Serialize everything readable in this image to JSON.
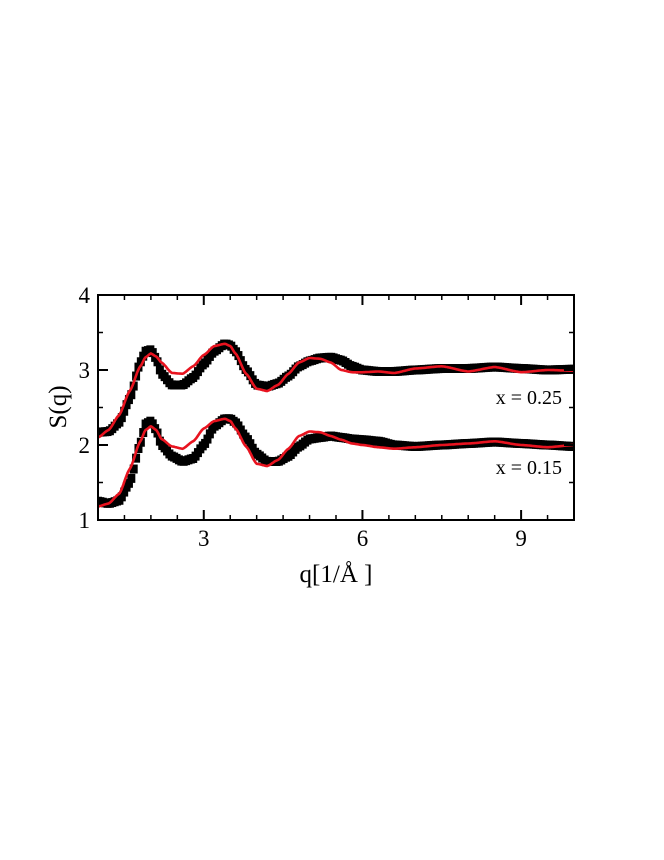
{
  "chart_data": {
    "type": "scatter",
    "xlabel": "q[1/Å ]",
    "ylabel": "S(q)",
    "xlim": [
      1,
      10
    ],
    "ylim": [
      1,
      4
    ],
    "x_ticks": [
      3,
      6,
      9
    ],
    "y_ticks": [
      1,
      2,
      3,
      4
    ],
    "grid": false,
    "annotations": [
      "x = 0.25",
      "x = 0.15"
    ],
    "colors": {
      "experiment": "#000000",
      "model": "#e8131f"
    },
    "series": [
      {
        "group": "x = 0.25",
        "style": "squares",
        "color": "#000000",
        "x": [
          1.0,
          1.2,
          1.4,
          1.6,
          1.8,
          1.9,
          2.0,
          2.1,
          2.2,
          2.4,
          2.6,
          2.8,
          3.0,
          3.2,
          3.4,
          3.5,
          3.6,
          3.8,
          4.0,
          4.2,
          4.4,
          4.6,
          4.8,
          5.0,
          5.2,
          5.4,
          5.6,
          5.8,
          6.0,
          6.3,
          6.6,
          7.0,
          7.5,
          8.0,
          8.5,
          9.0,
          9.5,
          10.0
        ],
        "y": [
          2.17,
          2.18,
          2.3,
          2.62,
          3.1,
          3.25,
          3.27,
          3.15,
          2.95,
          2.8,
          2.8,
          2.9,
          3.08,
          3.25,
          3.35,
          3.33,
          3.25,
          3.0,
          2.8,
          2.78,
          2.82,
          2.92,
          3.05,
          3.12,
          3.16,
          3.17,
          3.13,
          3.05,
          3.0,
          2.98,
          2.98,
          3.0,
          3.02,
          3.02,
          3.04,
          3.02,
          3.0,
          3.01
        ]
      },
      {
        "group": "x = 0.25",
        "style": "line",
        "color": "#e8131f",
        "x": [
          1.0,
          1.2,
          1.4,
          1.6,
          1.8,
          1.9,
          2.0,
          2.1,
          2.2,
          2.4,
          2.6,
          2.8,
          3.0,
          3.2,
          3.4,
          3.5,
          3.6,
          3.8,
          4.0,
          4.2,
          4.4,
          4.6,
          4.8,
          5.0,
          5.2,
          5.4,
          5.6,
          5.8,
          6.0,
          6.3,
          6.6,
          7.0,
          7.5,
          8.0,
          8.5,
          9.0,
          9.5,
          10.0
        ],
        "y": [
          2.1,
          2.2,
          2.4,
          2.72,
          3.05,
          3.17,
          3.22,
          3.18,
          3.1,
          2.96,
          2.95,
          3.05,
          3.2,
          3.32,
          3.35,
          3.32,
          3.22,
          2.95,
          2.75,
          2.72,
          2.8,
          2.95,
          3.1,
          3.16,
          3.15,
          3.1,
          3.0,
          2.97,
          2.97,
          2.98,
          2.96,
          3.02,
          3.05,
          2.98,
          3.04,
          2.97,
          3.0,
          2.99
        ]
      },
      {
        "group": "x = 0.15",
        "style": "squares",
        "color": "#000000",
        "x": [
          1.0,
          1.2,
          1.4,
          1.6,
          1.8,
          1.9,
          2.0,
          2.1,
          2.2,
          2.4,
          2.6,
          2.8,
          3.0,
          3.2,
          3.4,
          3.5,
          3.6,
          3.8,
          4.0,
          4.2,
          4.4,
          4.6,
          4.8,
          5.0,
          5.2,
          5.4,
          5.6,
          5.8,
          6.0,
          6.3,
          6.6,
          7.0,
          7.5,
          8.0,
          8.5,
          9.0,
          9.5,
          10.0
        ],
        "y": [
          1.25,
          1.22,
          1.26,
          1.5,
          2.02,
          2.28,
          2.32,
          2.2,
          2.0,
          1.85,
          1.78,
          1.82,
          2.0,
          2.25,
          2.35,
          2.35,
          2.3,
          2.1,
          1.88,
          1.78,
          1.78,
          1.85,
          1.98,
          2.08,
          2.1,
          2.12,
          2.1,
          2.08,
          2.07,
          2.05,
          2.0,
          1.98,
          2.0,
          2.02,
          2.04,
          2.02,
          2.0,
          1.98
        ]
      },
      {
        "group": "x = 0.15",
        "style": "line",
        "color": "#e8131f",
        "x": [
          1.0,
          1.2,
          1.4,
          1.6,
          1.8,
          1.9,
          2.0,
          2.1,
          2.2,
          2.4,
          2.6,
          2.8,
          3.0,
          3.2,
          3.4,
          3.5,
          3.6,
          3.8,
          4.0,
          4.2,
          4.4,
          4.6,
          4.8,
          5.0,
          5.2,
          5.4,
          5.6,
          5.8,
          6.0,
          6.3,
          6.6,
          7.0,
          7.5,
          8.0,
          8.5,
          9.0,
          9.5,
          10.0
        ],
        "y": [
          1.18,
          1.22,
          1.35,
          1.68,
          2.05,
          2.2,
          2.25,
          2.2,
          2.08,
          1.98,
          1.95,
          2.05,
          2.22,
          2.32,
          2.35,
          2.32,
          2.22,
          1.98,
          1.75,
          1.72,
          1.8,
          1.95,
          2.12,
          2.18,
          2.17,
          2.12,
          2.07,
          2.02,
          2.0,
          1.97,
          1.95,
          1.97,
          2.0,
          2.02,
          2.05,
          2.0,
          1.97,
          2.0
        ]
      }
    ]
  }
}
